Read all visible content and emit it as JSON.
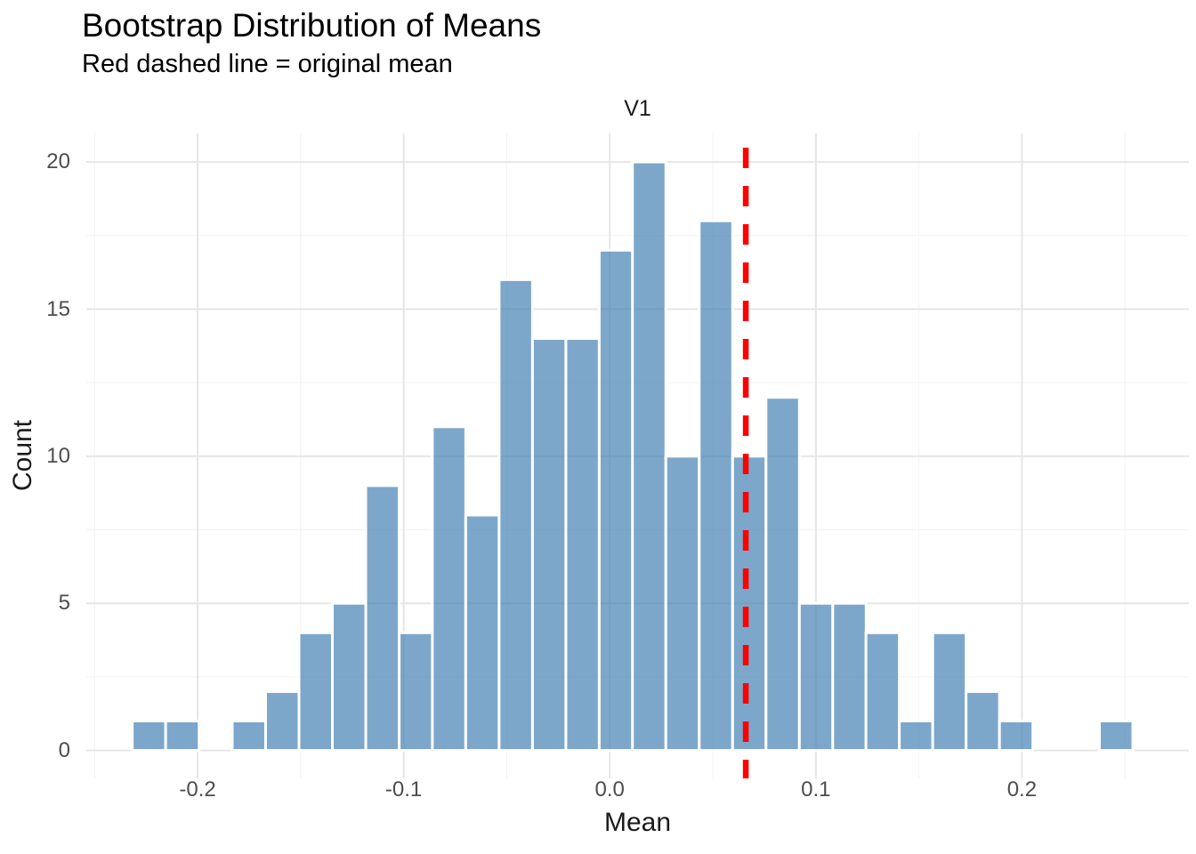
{
  "title": "Bootstrap Distribution of Means",
  "subtitle": "Red dashed line = original mean",
  "facet_label": "V1",
  "x_axis": {
    "label": "Mean",
    "tick_labels": [
      "-0.2",
      "-0.1",
      "0.0",
      "0.1",
      "0.2"
    ]
  },
  "y_axis": {
    "label": "Count",
    "tick_labels": [
      "0",
      "5",
      "10",
      "15",
      "20"
    ]
  },
  "colors": {
    "background": "#ffffff",
    "bar_fill": "#4682b4",
    "bar_fill_apparent": "#7da7ca",
    "bar_border": "#ffffff",
    "vline": "#ff0000",
    "grid_major": "#e6e6e6",
    "grid_minor": "#f2f2f2",
    "tick_text": "#4d4d4d",
    "axis_title_text": "#1a1a1a",
    "title_text": "#000000"
  },
  "chart_data": {
    "type": "histogram",
    "title": "Bootstrap Distribution of Means",
    "subtitle": "Red dashed line = original mean",
    "facet": "V1",
    "xlabel": "Mean",
    "ylabel": "Count",
    "xlim": [
      -0.254,
      0.281
    ],
    "ylim": [
      -0.95,
      20.97
    ],
    "x_ticks": [
      -0.2,
      -0.1,
      0.0,
      0.1,
      0.2
    ],
    "x_minor_ticks": [
      -0.25,
      -0.15,
      -0.05,
      0.05,
      0.15,
      0.25
    ],
    "y_ticks": [
      0,
      5,
      10,
      15,
      20
    ],
    "y_minor_ticks": [
      2.5,
      7.5,
      12.5,
      17.5
    ],
    "bin_width": 0.0162,
    "bin_centers": [
      -0.2236,
      -0.2074,
      -0.1913,
      -0.1751,
      -0.1589,
      -0.1427,
      -0.1265,
      -0.1103,
      -0.0941,
      -0.078,
      -0.0618,
      -0.0456,
      -0.0294,
      -0.0132,
      0.003,
      0.0191,
      0.0353,
      0.0515,
      0.0677,
      0.0839,
      0.1001,
      0.1163,
      0.1324,
      0.1486,
      0.1648,
      0.181,
      0.1972,
      0.2134,
      0.2296,
      0.2457
    ],
    "counts": [
      1,
      1,
      0,
      1,
      2,
      4,
      5,
      9,
      4,
      11,
      8,
      16,
      14,
      14,
      17,
      20,
      10,
      18,
      10,
      12,
      5,
      5,
      4,
      1,
      4,
      2,
      1,
      0,
      0,
      1
    ],
    "total_samples": 200,
    "vline_x": 0.066,
    "vline_style": "dashed",
    "vline_meaning": "original mean",
    "grid": true,
    "legend": false,
    "bar_alpha": 0.7
  }
}
